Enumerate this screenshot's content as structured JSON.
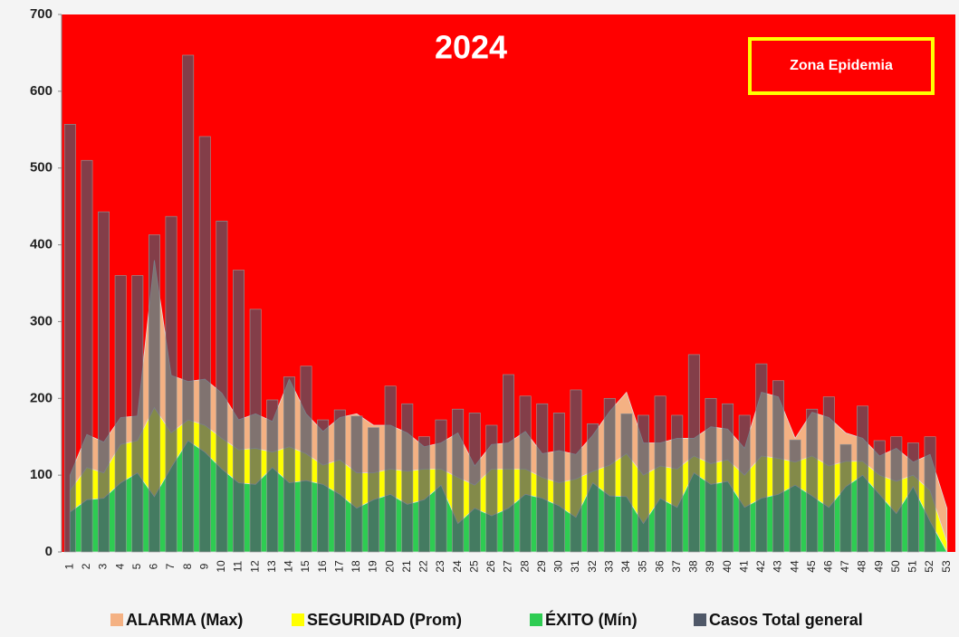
{
  "chart_data": {
    "type": "epidemic-channel",
    "title": "2024",
    "annotations": [
      "Zona Epidemia"
    ],
    "background_color": "#ff0000",
    "categories": [
      "1",
      "2",
      "3",
      "4",
      "5",
      "6",
      "7",
      "8",
      "9",
      "10",
      "11",
      "12",
      "13",
      "14",
      "15",
      "16",
      "17",
      "18",
      "19",
      "20",
      "21",
      "22",
      "23",
      "24",
      "25",
      "26",
      "27",
      "28",
      "29",
      "30",
      "31",
      "32",
      "33",
      "34",
      "35",
      "36",
      "37",
      "38",
      "39",
      "40",
      "41",
      "42",
      "43",
      "44",
      "45",
      "46",
      "47",
      "48",
      "49",
      "50",
      "51",
      "52",
      "53"
    ],
    "series": [
      {
        "name": "ALARMA (Max)",
        "color": "#f4b183",
        "kind": "area",
        "values": [
          100,
          153,
          143,
          175,
          177,
          380,
          230,
          222,
          225,
          207,
          172,
          180,
          170,
          225,
          180,
          157,
          175,
          180,
          165,
          165,
          155,
          137,
          142,
          155,
          112,
          140,
          142,
          157,
          128,
          132,
          127,
          152,
          183,
          208,
          142,
          142,
          148,
          148,
          163,
          160,
          135,
          208,
          202,
          148,
          182,
          175,
          155,
          148,
          125,
          135,
          117,
          127,
          57
        ]
      },
      {
        "name": "SEGURIDAD (Prom)",
        "color": "#ffff00",
        "kind": "area",
        "values": [
          80,
          110,
          103,
          140,
          145,
          188,
          155,
          172,
          165,
          148,
          133,
          135,
          130,
          137,
          128,
          113,
          120,
          103,
          103,
          108,
          105,
          108,
          108,
          97,
          87,
          108,
          108,
          108,
          97,
          90,
          95,
          105,
          113,
          128,
          100,
          112,
          108,
          125,
          115,
          120,
          100,
          125,
          122,
          117,
          125,
          112,
          118,
          118,
          100,
          92,
          100,
          80,
          13
        ]
      },
      {
        "name": "ÉXITO (Mín)",
        "color": "#2ecc52",
        "kind": "area",
        "values": [
          52,
          68,
          70,
          90,
          103,
          72,
          110,
          145,
          130,
          108,
          90,
          88,
          110,
          90,
          93,
          88,
          75,
          57,
          68,
          75,
          62,
          68,
          87,
          37,
          57,
          47,
          57,
          75,
          70,
          60,
          45,
          90,
          73,
          72,
          37,
          70,
          58,
          103,
          88,
          92,
          58,
          70,
          75,
          87,
          73,
          58,
          85,
          100,
          75,
          50,
          85,
          40,
          0
        ]
      },
      {
        "name": "Casos Total general",
        "color": "#4f5868",
        "kind": "bar",
        "values": [
          557,
          510,
          443,
          360,
          360,
          413,
          437,
          647,
          541,
          431,
          367,
          316,
          198,
          228,
          242,
          172,
          185,
          177,
          162,
          216,
          193,
          150,
          172,
          186,
          181,
          165,
          231,
          203,
          193,
          181,
          211,
          167,
          200,
          180,
          178,
          203,
          178,
          257,
          200,
          193,
          178,
          245,
          223,
          146,
          186,
          202,
          140,
          190,
          145,
          150,
          142,
          150,
          null
        ]
      }
    ],
    "ylim": [
      0,
      700
    ],
    "yticks": [
      0,
      100,
      200,
      300,
      400,
      500,
      600,
      700
    ]
  }
}
